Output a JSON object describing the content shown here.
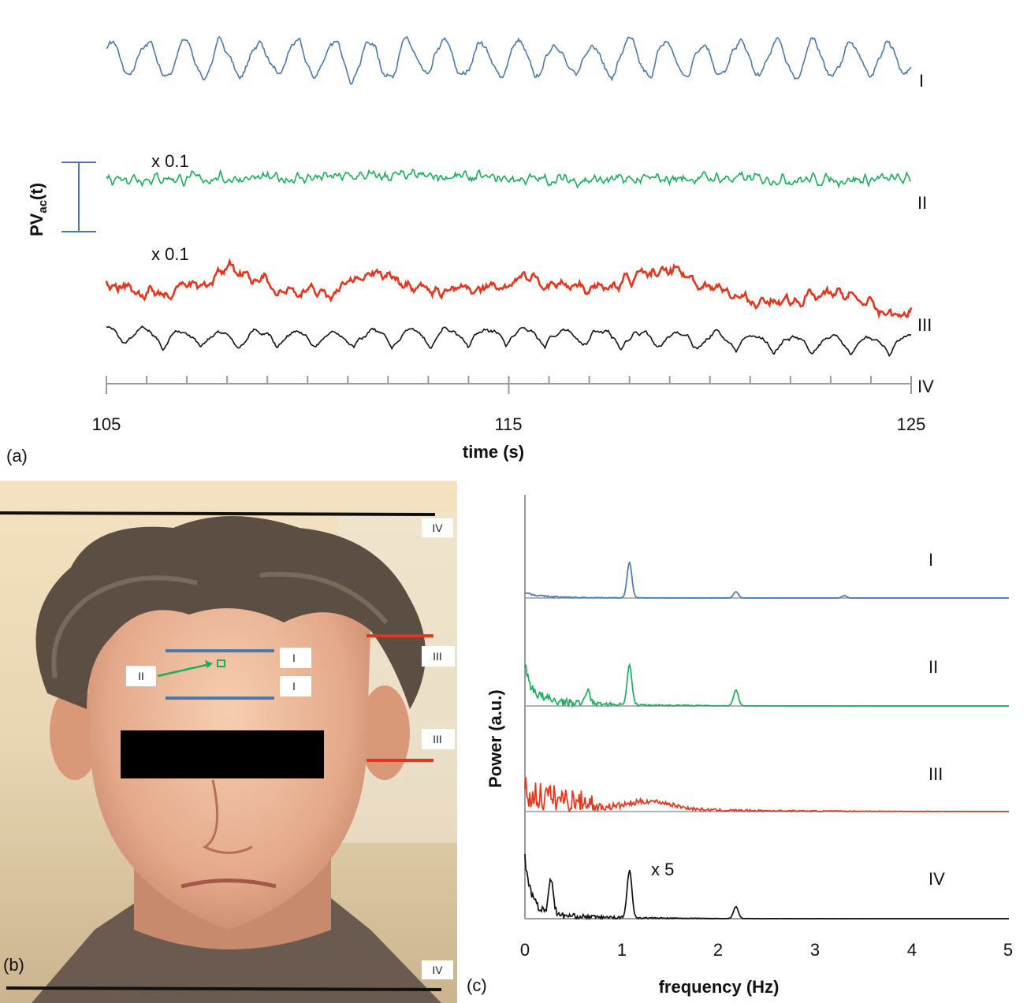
{
  "chart_data": [
    {
      "panel": "(a)",
      "type": "line",
      "xlabel": "time (s)",
      "ylabel_main": "PV",
      "ylabel_sub": "ac",
      "ylabel_suffix": "(t)",
      "xlim": [
        105,
        125
      ],
      "x_ticks": [
        "105",
        "115",
        "125"
      ],
      "minor_tick_step": 1,
      "scale_bar": "vertical bar indicating PVac(t) amplitude",
      "series": [
        {
          "name": "I",
          "color": "#4a78b0",
          "period_s": 0.92,
          "amplitude": 1.0
        },
        {
          "name": "II",
          "color": "#1aaf5c",
          "annotation": "x 0.1"
        },
        {
          "name": "III",
          "color": "#e8341c",
          "annotation": "x 0.1"
        },
        {
          "name": "IV",
          "color": "#111111"
        }
      ]
    },
    {
      "panel": "(c)",
      "type": "line",
      "xlabel": "frequency (Hz)",
      "ylabel": "Power (a.u.)",
      "xlim": [
        0,
        5
      ],
      "x_ticks": [
        "0",
        "1",
        "2",
        "3",
        "4",
        "5"
      ],
      "series": [
        {
          "name": "I",
          "color": "#4a78b0",
          "peaks_hz": [
            1.08,
            2.18,
            3.3
          ]
        },
        {
          "name": "II",
          "color": "#1aaf5c",
          "peaks_hz": [
            1.08,
            2.18
          ]
        },
        {
          "name": "III",
          "color": "#e8341c"
        },
        {
          "name": "IV",
          "color": "#111111",
          "annotation": "x 5",
          "peaks_hz": [
            0.27,
            1.08,
            2.18
          ]
        }
      ]
    }
  ],
  "photo_panel": {
    "label": "(b)",
    "roi_labels": {
      "I_top": "I",
      "I_bottom": "I",
      "II": "II",
      "III_top": "III",
      "III_bottom": "III",
      "IV_top": "IV",
      "IV_bottom": "IV"
    },
    "colors": {
      "I": "#4a78b0",
      "II": "#1aaf5c",
      "III": "#e8341c",
      "IV": "#111111"
    }
  },
  "panel_c_label": "(c)"
}
